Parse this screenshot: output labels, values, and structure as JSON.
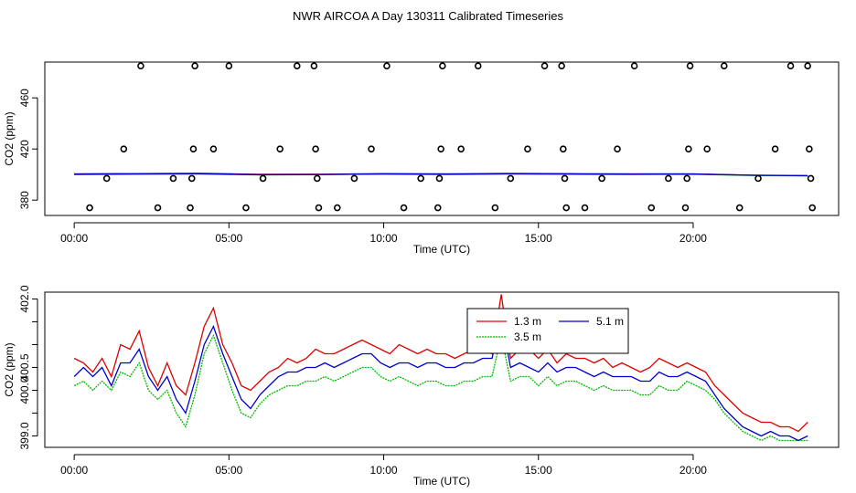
{
  "page": {
    "title": "NWR AIRCOA A  Day 130311  Calibrated Timeseries"
  },
  "colors": {
    "red": "#dd0000",
    "green": "#00bb00",
    "blue": "#0000cc",
    "frame": "#000000"
  },
  "chart_data": [
    {
      "type": "scatter",
      "title": "",
      "xlabel": "Time (UTC)",
      "ylabel": "CO2 (ppm)",
      "xlim": [
        -0.95,
        24.7
      ],
      "ylim": [
        368,
        488
      ],
      "xticks": [
        0,
        5,
        10,
        15,
        20
      ],
      "xtick_labels": [
        "00:00",
        "05:00",
        "10:00",
        "15:00",
        "20:00"
      ],
      "yticks": [
        380,
        420,
        460
      ],
      "ytick_labels": [
        "380",
        "420",
        "460"
      ],
      "points": [
        {
          "x": 0.5,
          "y": 374
        },
        {
          "x": 1.05,
          "y": 397
        },
        {
          "x": 1.6,
          "y": 420
        },
        {
          "x": 2.15,
          "y": 485
        },
        {
          "x": 2.7,
          "y": 374
        },
        {
          "x": 3.2,
          "y": 397
        },
        {
          "x": 3.75,
          "y": 374
        },
        {
          "x": 3.8,
          "y": 397
        },
        {
          "x": 3.85,
          "y": 420
        },
        {
          "x": 3.9,
          "y": 485
        },
        {
          "x": 4.5,
          "y": 420
        },
        {
          "x": 5.0,
          "y": 485
        },
        {
          "x": 5.55,
          "y": 374
        },
        {
          "x": 6.1,
          "y": 397
        },
        {
          "x": 6.65,
          "y": 420
        },
        {
          "x": 7.2,
          "y": 485
        },
        {
          "x": 7.75,
          "y": 485
        },
        {
          "x": 7.8,
          "y": 420
        },
        {
          "x": 7.85,
          "y": 397
        },
        {
          "x": 7.9,
          "y": 374
        },
        {
          "x": 8.5,
          "y": 374
        },
        {
          "x": 9.05,
          "y": 397
        },
        {
          "x": 9.6,
          "y": 420
        },
        {
          "x": 10.1,
          "y": 485
        },
        {
          "x": 10.65,
          "y": 374
        },
        {
          "x": 11.2,
          "y": 397
        },
        {
          "x": 11.75,
          "y": 374
        },
        {
          "x": 11.8,
          "y": 397
        },
        {
          "x": 11.85,
          "y": 420
        },
        {
          "x": 11.9,
          "y": 485
        },
        {
          "x": 12.5,
          "y": 420
        },
        {
          "x": 13.05,
          "y": 485
        },
        {
          "x": 13.6,
          "y": 374
        },
        {
          "x": 14.1,
          "y": 397
        },
        {
          "x": 14.65,
          "y": 420
        },
        {
          "x": 15.2,
          "y": 485
        },
        {
          "x": 15.75,
          "y": 485
        },
        {
          "x": 15.8,
          "y": 420
        },
        {
          "x": 15.85,
          "y": 397
        },
        {
          "x": 15.9,
          "y": 374
        },
        {
          "x": 16.5,
          "y": 374
        },
        {
          "x": 17.05,
          "y": 397
        },
        {
          "x": 17.55,
          "y": 420
        },
        {
          "x": 18.1,
          "y": 485
        },
        {
          "x": 18.65,
          "y": 374
        },
        {
          "x": 19.2,
          "y": 397
        },
        {
          "x": 19.75,
          "y": 374
        },
        {
          "x": 19.8,
          "y": 397
        },
        {
          "x": 19.85,
          "y": 420
        },
        {
          "x": 19.9,
          "y": 485
        },
        {
          "x": 20.45,
          "y": 420
        },
        {
          "x": 21.0,
          "y": 485
        },
        {
          "x": 21.5,
          "y": 374
        },
        {
          "x": 22.1,
          "y": 397
        },
        {
          "x": 22.65,
          "y": 420
        },
        {
          "x": 23.15,
          "y": 485
        },
        {
          "x": 23.7,
          "y": 485
        },
        {
          "x": 23.75,
          "y": 420
        },
        {
          "x": 23.8,
          "y": 397
        },
        {
          "x": 23.85,
          "y": 374
        }
      ],
      "series": [
        {
          "name": "1.3 m",
          "color": "red",
          "x": [
            0,
            2,
            4,
            6,
            8,
            10,
            12,
            14,
            16,
            18,
            20,
            22,
            23.7
          ],
          "values": [
            400.6,
            400.8,
            401.0,
            400.2,
            400.3,
            400.7,
            400.6,
            400.9,
            400.7,
            400.6,
            400.6,
            399.5,
            399.2
          ]
        },
        {
          "name": "3.5 m",
          "color": "green",
          "x": [
            0,
            2,
            4,
            6,
            8,
            10,
            12,
            14,
            16,
            18,
            20,
            22,
            23.7
          ],
          "values": [
            400.0,
            400.2,
            400.4,
            399.7,
            400.0,
            400.3,
            400.1,
            400.4,
            400.2,
            400.1,
            400.2,
            399.3,
            399.0
          ]
        },
        {
          "name": "5.1 m",
          "color": "blue",
          "x": [
            0,
            2,
            4,
            6,
            8,
            10,
            12,
            14,
            16,
            18,
            20,
            22,
            23.7
          ],
          "values": [
            400.3,
            400.5,
            400.7,
            399.9,
            400.1,
            400.5,
            400.3,
            400.6,
            400.4,
            400.3,
            400.4,
            399.4,
            399.1
          ]
        }
      ]
    },
    {
      "type": "line",
      "title": "",
      "xlabel": "Time (UTC)",
      "ylabel": "CO2 (ppm)",
      "xlim": [
        -0.95,
        24.7
      ],
      "ylim": [
        398.75,
        402.15
      ],
      "xticks": [
        0,
        5,
        10,
        15,
        20
      ],
      "xtick_labels": [
        "00:00",
        "05:00",
        "10:00",
        "15:00",
        "20:00"
      ],
      "yticks": [
        399.0,
        399.5,
        400.0,
        400.5,
        401.0,
        401.5,
        402.0
      ],
      "ytick_labels": [
        "399.0",
        "",
        "400.0",
        "400.5",
        "",
        "",
        "402.0"
      ],
      "legend": {
        "position": "top-center",
        "entries": [
          "1.3 m",
          "5.1 m",
          "3.5 m"
        ]
      },
      "x": [
        0,
        0.3,
        0.6,
        0.9,
        1.2,
        1.5,
        1.8,
        2.1,
        2.4,
        2.7,
        3.0,
        3.3,
        3.6,
        3.9,
        4.2,
        4.5,
        4.8,
        5.1,
        5.4,
        5.7,
        6.0,
        6.3,
        6.6,
        6.9,
        7.2,
        7.5,
        7.8,
        8.1,
        8.4,
        8.7,
        9.0,
        9.3,
        9.6,
        9.9,
        10.2,
        10.5,
        10.8,
        11.1,
        11.4,
        11.7,
        12.0,
        12.3,
        12.6,
        12.9,
        13.2,
        13.5,
        13.8,
        14.1,
        14.4,
        14.7,
        15.0,
        15.3,
        15.6,
        15.9,
        16.2,
        16.5,
        16.8,
        17.1,
        17.4,
        17.7,
        18.0,
        18.3,
        18.6,
        18.9,
        19.2,
        19.5,
        19.8,
        20.1,
        20.4,
        20.7,
        21.0,
        21.3,
        21.6,
        21.9,
        22.2,
        22.5,
        22.8,
        23.1,
        23.4,
        23.7
      ],
      "series": [
        {
          "name": "1.3 m",
          "color": "red",
          "values": [
            400.7,
            400.6,
            400.4,
            400.7,
            400.3,
            401.0,
            400.9,
            401.3,
            400.5,
            400.1,
            400.6,
            400.1,
            399.9,
            400.6,
            401.4,
            401.8,
            401.0,
            400.6,
            400.1,
            400.0,
            400.2,
            400.4,
            400.5,
            400.7,
            400.6,
            400.7,
            400.9,
            400.8,
            400.8,
            400.9,
            401.0,
            401.1,
            401.0,
            400.9,
            400.8,
            401.0,
            400.9,
            400.8,
            400.9,
            400.8,
            400.8,
            400.7,
            400.8,
            400.9,
            400.9,
            400.8,
            402.1,
            400.7,
            400.9,
            400.9,
            400.7,
            400.9,
            400.6,
            400.8,
            400.7,
            400.7,
            400.6,
            400.7,
            400.5,
            400.6,
            400.5,
            400.4,
            400.5,
            400.7,
            400.6,
            400.5,
            400.6,
            400.5,
            400.4,
            400.1,
            399.9,
            399.7,
            399.5,
            399.4,
            399.3,
            399.3,
            399.2,
            399.2,
            399.1,
            399.3
          ]
        },
        {
          "name": "5.1 m",
          "color": "blue",
          "values": [
            400.3,
            400.5,
            400.3,
            400.5,
            400.1,
            400.6,
            400.6,
            400.9,
            400.3,
            400.0,
            400.3,
            399.8,
            399.5,
            400.2,
            401.0,
            401.4,
            400.8,
            400.3,
            399.8,
            399.6,
            399.9,
            400.1,
            400.3,
            400.4,
            400.4,
            400.5,
            400.5,
            400.6,
            400.5,
            400.6,
            400.7,
            400.8,
            400.8,
            400.6,
            400.5,
            400.6,
            400.6,
            400.5,
            400.6,
            400.6,
            400.5,
            400.5,
            400.6,
            400.6,
            400.7,
            400.7,
            401.6,
            400.5,
            400.6,
            400.5,
            400.4,
            400.6,
            400.4,
            400.5,
            400.5,
            400.4,
            400.3,
            400.4,
            400.3,
            400.3,
            400.3,
            400.2,
            400.2,
            400.4,
            400.3,
            400.3,
            400.4,
            400.3,
            400.2,
            399.9,
            399.6,
            399.4,
            399.2,
            399.1,
            399.0,
            399.1,
            399.0,
            399.0,
            398.9,
            399.0
          ]
        },
        {
          "name": "3.5 m",
          "color": "green",
          "values": [
            400.1,
            400.2,
            400.0,
            400.2,
            400.0,
            400.4,
            400.3,
            400.6,
            400.0,
            399.8,
            400.0,
            399.5,
            399.2,
            399.9,
            400.8,
            401.2,
            400.6,
            400.0,
            399.5,
            399.4,
            399.7,
            399.9,
            400.0,
            400.1,
            400.1,
            400.2,
            400.2,
            400.3,
            400.2,
            400.3,
            400.4,
            400.5,
            400.5,
            400.3,
            400.2,
            400.3,
            400.2,
            400.1,
            400.2,
            400.2,
            400.1,
            400.1,
            400.2,
            400.2,
            400.3,
            400.3,
            401.2,
            400.2,
            400.3,
            400.3,
            400.1,
            400.3,
            400.1,
            400.2,
            400.2,
            400.1,
            400.0,
            400.1,
            400.0,
            400.0,
            400.0,
            399.9,
            399.9,
            400.1,
            400.0,
            400.0,
            400.2,
            400.1,
            400.0,
            399.8,
            399.5,
            399.3,
            399.1,
            399.0,
            398.9,
            399.0,
            398.9,
            398.9,
            398.9,
            398.9
          ]
        }
      ]
    }
  ]
}
